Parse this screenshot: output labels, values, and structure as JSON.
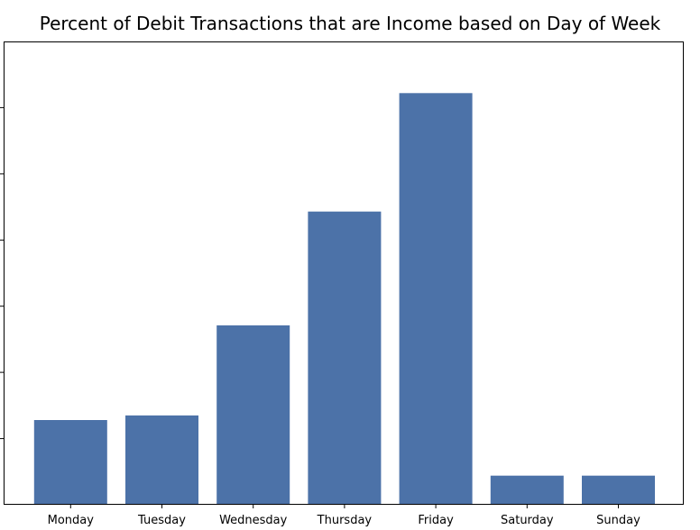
{
  "chart_data": {
    "type": "bar",
    "title": "Percent of Debit Transactions that are Income based on Day of Week",
    "xlabel": "",
    "ylabel": "",
    "categories": [
      "Monday",
      "Tuesday",
      "Wednesday",
      "Thursday",
      "Friday",
      "Saturday",
      "Sunday"
    ],
    "values": [
      0.128,
      0.135,
      0.271,
      0.443,
      0.622,
      0.044,
      0.044
    ],
    "ylim": [
      0,
      0.7
    ],
    "y_tick_values": [
      0.1,
      0.2,
      0.3,
      0.4,
      0.5,
      0.6
    ],
    "y_tick_labels_visible": false,
    "grid": false,
    "legend": "none",
    "colors": {
      "bar": "#4c72a8",
      "axis": "#000000"
    }
  }
}
